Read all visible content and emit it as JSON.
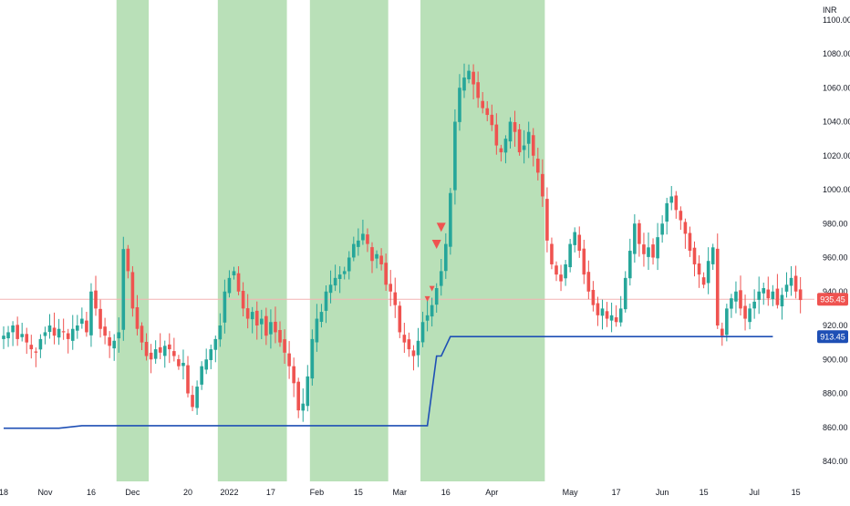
{
  "chart_data": {
    "type": "candlestick",
    "currency": "INR",
    "y_ticks": [
      840,
      860,
      880,
      900,
      920,
      940,
      960,
      980,
      1000,
      1020,
      1040,
      1060,
      1080,
      1100
    ],
    "ylim": [
      828,
      1110
    ],
    "x_ticks": [
      {
        "label": "18",
        "idx": 0
      },
      {
        "label": "Nov",
        "idx": 9
      },
      {
        "label": "16",
        "idx": 19
      },
      {
        "label": "Dec",
        "idx": 28
      },
      {
        "label": "20",
        "idx": 40
      },
      {
        "label": "2022",
        "idx": 49
      },
      {
        "label": "17",
        "idx": 58
      },
      {
        "label": "Feb",
        "idx": 68
      },
      {
        "label": "15",
        "idx": 77
      },
      {
        "label": "Mar",
        "idx": 86
      },
      {
        "label": "16",
        "idx": 96
      },
      {
        "label": "Apr",
        "idx": 106
      },
      {
        "label": "May",
        "idx": 123
      },
      {
        "label": "17",
        "idx": 133
      },
      {
        "label": "Jun",
        "idx": 143
      },
      {
        "label": "15",
        "idx": 152
      },
      {
        "label": "Jul",
        "idx": 163
      },
      {
        "label": "15",
        "idx": 172
      }
    ],
    "shaded_ranges": [
      [
        25,
        31
      ],
      [
        47,
        61
      ],
      [
        67,
        83
      ],
      [
        91,
        117
      ]
    ],
    "close_series": [
      914,
      916,
      920,
      912,
      915,
      910,
      906,
      904,
      912,
      916,
      920,
      914,
      918,
      916,
      912,
      918,
      920,
      924,
      916,
      940,
      930,
      918,
      914,
      908,
      911,
      916,
      965,
      952,
      930,
      918,
      910,
      902,
      900,
      906,
      904,
      908,
      906,
      902,
      896,
      898,
      880,
      872,
      884,
      896,
      900,
      906,
      912,
      920,
      940,
      948,
      952,
      940,
      930,
      924,
      928,
      920,
      924,
      914,
      922,
      916,
      910,
      904,
      896,
      886,
      870,
      874,
      890,
      912,
      924,
      928,
      940,
      944,
      948,
      950,
      952,
      960,
      968,
      970,
      974,
      968,
      958,
      962,
      956,
      944,
      940,
      932,
      916,
      910,
      906,
      902,
      911,
      922,
      926,
      932,
      942,
      952,
      968,
      998,
      1040,
      1060,
      1066,
      1070,
      1062,
      1054,
      1048,
      1044,
      1038,
      1026,
      1022,
      1030,
      1040,
      1034,
      1022,
      1026,
      1034,
      1020,
      1010,
      996,
      970,
      956,
      950,
      946,
      956,
      968,
      975,
      964,
      950,
      940,
      932,
      926,
      930,
      924,
      926,
      922,
      930,
      948,
      964,
      980,
      968,
      962,
      966,
      960,
      972,
      980,
      992,
      996,
      988,
      982,
      974,
      964,
      956,
      950,
      944,
      958,
      966,
      920,
      914,
      930,
      936,
      940,
      930,
      924,
      930,
      934,
      940,
      942,
      936,
      940,
      932,
      938,
      944,
      948,
      940,
      935
    ],
    "support_line": [
      {
        "from_idx": 0,
        "to_idx": 12,
        "value": 859.5
      },
      {
        "from_idx": 17,
        "to_idx": 92,
        "value": 861
      },
      {
        "from_idx": 94,
        "to_idx": 95,
        "value": 902
      },
      {
        "from_idx": 97,
        "to_idx": 167,
        "value": 913.45
      }
    ],
    "reference_line_value": 935.45,
    "last_price_label": "935.45",
    "support_label": "913.45",
    "sell_marker_indices": [
      92,
      93,
      94,
      95
    ]
  },
  "colors": {
    "up": "#26a69a",
    "down": "#ef5350",
    "shading": "#b9e0b8",
    "support_line": "#1e4fb5",
    "reference_line": "#f4b3b3",
    "axis_text": "#131722",
    "background": "#ffffff"
  }
}
